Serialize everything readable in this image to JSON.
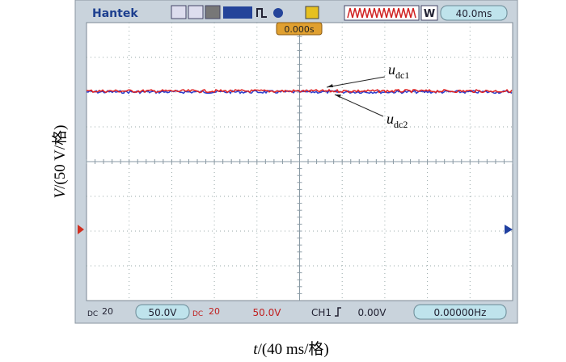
{
  "toolbar": {
    "brand": "Hantek",
    "mode": "W",
    "timebase": "40.0ms"
  },
  "trigger_time": "0.000s",
  "annotations": [
    {
      "symbol": "u",
      "subscript": "dc1"
    },
    {
      "symbol": "u",
      "subscript": "dc2"
    }
  ],
  "status_bar": {
    "ch1_coupling": "DC",
    "ch1_bw": "20",
    "ch1_scale": "50.0V",
    "ch2_coupling": "DC",
    "ch2_bw": "20",
    "ch2_scale": "50.0V",
    "trigger_source": "CH1",
    "trigger_level": "0.00V",
    "frequency": "0.00000Hz"
  },
  "axes": {
    "y_label": {
      "variable": "V",
      "unit": "/(50 V/格)"
    },
    "x_label": {
      "variable": "t",
      "unit": "/(40 ms/格)"
    }
  }
}
